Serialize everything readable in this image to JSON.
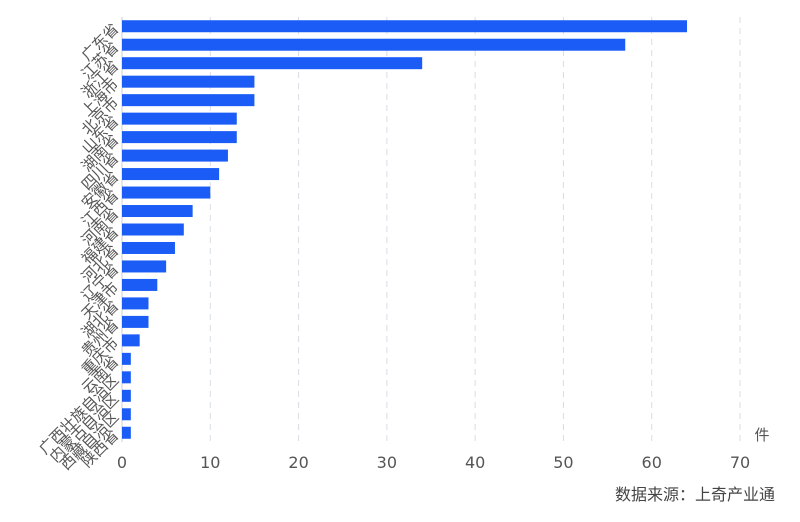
{
  "chart_data": {
    "type": "hbar",
    "unit": "件",
    "source": "数据来源：上奇产业通",
    "categories": [
      "广东省",
      "江苏省",
      "浙江省",
      "上海市",
      "北京市",
      "山东省",
      "湖南省",
      "四川省",
      "安徽省",
      "江西省",
      "河南省",
      "福建省",
      "河北省",
      "辽宁省",
      "天津市",
      "湖北省",
      "贵州省",
      "重庆市",
      "云南省",
      "广西壮族自治区",
      "内蒙古自治区",
      "西藏自治区",
      "陕西省"
    ],
    "values": [
      64,
      57,
      34,
      15,
      15,
      13,
      13,
      12,
      11,
      10,
      8,
      7,
      6,
      5,
      4,
      3,
      3,
      2,
      1,
      1,
      1,
      1,
      1
    ],
    "color": "#1a5cf5",
    "xlim": [
      0,
      70
    ],
    "xticks": [
      0,
      10,
      20,
      30,
      40,
      50,
      60,
      70
    ],
    "grid": true
  }
}
